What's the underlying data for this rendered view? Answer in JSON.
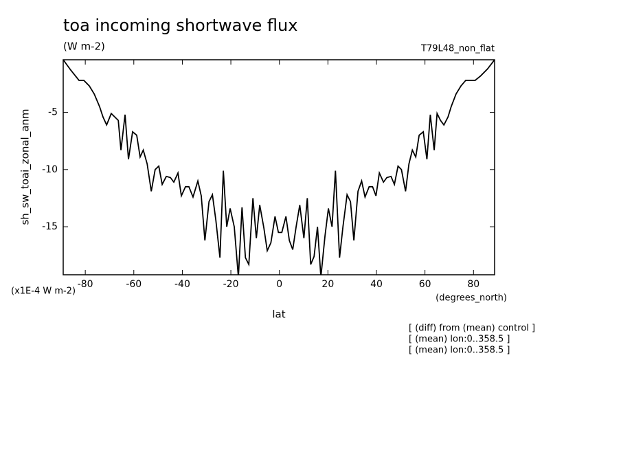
{
  "chart_data": {
    "type": "line",
    "title": "toa incoming shortwave flux",
    "subtitle": "(W m-2)",
    "run_label": "T79L48_non_flat",
    "y_label": "sh_sw_toai_zonal_anm",
    "y_scale_label": "(x1E-4 W m-2)",
    "x_unit_label": "(degrees_north)",
    "x_label": "lat",
    "notes": [
      "[ (diff) from (mean) control ]",
      "[ (mean) lon:0..358.5 ]",
      "[ (mean) lon:0..358.5 ]"
    ],
    "color": "#000000",
    "xlim": [
      -89.1,
      88.7
    ],
    "ylim": [
      -19.2,
      -0.4
    ],
    "xticks": [
      -80,
      -60,
      -40,
      -20,
      0,
      20,
      40,
      60,
      80
    ],
    "yticks": [
      -5,
      -10,
      -15
    ],
    "x": [
      -89.1,
      -86.0,
      -82.6,
      -80.6,
      -78.3,
      -76.3,
      -74.1,
      -72.7,
      -71.2,
      -69.3,
      -66.4,
      -65.3,
      -63.6,
      -62.2,
      -60.5,
      -58.8,
      -57.4,
      -56.1,
      -54.5,
      -52.8,
      -51.2,
      -49.7,
      -48.3,
      -46.6,
      -44.9,
      -43.5,
      -41.8,
      -40.4,
      -38.7,
      -37.3,
      -35.6,
      -33.6,
      -32.2,
      -30.7,
      -29.0,
      -27.6,
      -26.2,
      -24.5,
      -23.1,
      -21.7,
      -20.3,
      -18.6,
      -16.9,
      -15.4,
      -14.0,
      -12.6,
      -10.9,
      -9.5,
      -8.1,
      -6.4,
      -5.0,
      -3.5,
      -1.8,
      -0.4,
      1.0,
      2.7,
      4.1,
      5.5,
      6.9,
      8.4,
      10.1,
      11.5,
      12.9,
      14.3,
      15.7,
      17.1,
      18.8,
      20.2,
      21.7,
      23.1,
      24.8,
      26.2,
      27.9,
      29.3,
      30.7,
      32.4,
      33.9,
      35.3,
      37.0,
      38.4,
      39.8,
      41.2,
      42.9,
      44.3,
      46.0,
      47.4,
      48.9,
      50.3,
      52.0,
      53.4,
      54.8,
      56.2,
      57.6,
      59.3,
      60.8,
      62.2,
      63.8,
      65.0,
      66.4,
      67.8,
      69.5,
      70.8,
      72.8,
      74.8,
      76.8,
      79.1,
      80.7,
      83.0,
      85.8,
      88.7
    ],
    "values": [
      -0.4,
      -1.3,
      -2.2,
      -2.2,
      -2.7,
      -3.4,
      -4.5,
      -5.4,
      -6.1,
      -5.1,
      -5.7,
      -8.3,
      -5.2,
      -9.1,
      -6.7,
      -7.0,
      -8.9,
      -8.3,
      -9.5,
      -11.9,
      -10.0,
      -9.7,
      -11.3,
      -10.6,
      -10.7,
      -11.1,
      -10.3,
      -12.3,
      -11.5,
      -11.5,
      -12.4,
      -11.0,
      -12.3,
      -16.2,
      -12.8,
      -12.2,
      -14.4,
      -17.7,
      -10.1,
      -15.0,
      -13.4,
      -15.0,
      -19.4,
      -13.3,
      -17.7,
      -18.3,
      -12.5,
      -16.0,
      -13.1,
      -15.1,
      -17.1,
      -16.4,
      -14.1,
      -15.5,
      -15.5,
      -14.1,
      -16.2,
      -17.0,
      -15.0,
      -13.1,
      -16.0,
      -12.5,
      -18.3,
      -17.6,
      -15.0,
      -19.4,
      -15.8,
      -13.4,
      -15.0,
      -10.1,
      -17.7,
      -15.0,
      -12.2,
      -12.8,
      -16.2,
      -11.9,
      -11.0,
      -12.4,
      -11.5,
      -11.5,
      -12.3,
      -10.3,
      -11.1,
      -10.7,
      -10.6,
      -11.3,
      -9.7,
      -10.0,
      -11.9,
      -9.5,
      -8.3,
      -8.9,
      -7.0,
      -6.7,
      -9.1,
      -5.2,
      -8.3,
      -5.1,
      -5.7,
      -6.1,
      -5.4,
      -4.5,
      -3.4,
      -2.7,
      -2.2,
      -2.2,
      -2.2,
      -1.8,
      -1.2,
      -0.4
    ]
  }
}
